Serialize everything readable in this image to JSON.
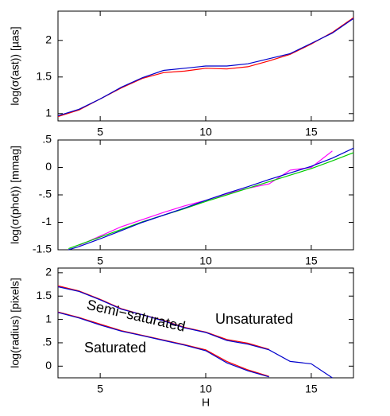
{
  "chart_data": [
    {
      "type": "line",
      "ylabel": "log(σ(ast)) [µas]",
      "xlim": [
        3,
        17
      ],
      "xticks": [
        5,
        10,
        15
      ],
      "ylim": [
        0.9,
        2.4
      ],
      "yticks": [
        1,
        1.5,
        2
      ],
      "series": [
        {
          "color": "#ff0000",
          "x": [
            3,
            4,
            5,
            6,
            7,
            8,
            9,
            10,
            11,
            12,
            13,
            14,
            15,
            16,
            17
          ],
          "values": [
            0.96,
            1.05,
            1.2,
            1.35,
            1.48,
            1.56,
            1.58,
            1.62,
            1.61,
            1.64,
            1.72,
            1.81,
            1.95,
            2.11,
            2.31
          ]
        },
        {
          "color": "#0000cc",
          "x": [
            3,
            4,
            5,
            6,
            7,
            8,
            9,
            10,
            11,
            12,
            13,
            14,
            15,
            16,
            17
          ],
          "values": [
            0.97,
            1.06,
            1.2,
            1.36,
            1.49,
            1.59,
            1.62,
            1.65,
            1.65,
            1.68,
            1.75,
            1.82,
            1.96,
            2.1,
            2.3
          ]
        }
      ]
    },
    {
      "type": "line",
      "ylabel": "log(σ(phot)) [mmag]",
      "xlim": [
        3,
        17
      ],
      "xticks": [
        5,
        10,
        15
      ],
      "ylim": [
        -1.5,
        0.5
      ],
      "yticks": [
        -1.5,
        -1,
        {
          "value": -0.5,
          "label": "-.5"
        },
        0,
        {
          "value": 0.5,
          "label": ".5"
        }
      ],
      "series": [
        {
          "color": "#ff00ff",
          "x": [
            4,
            5,
            6,
            7,
            8,
            9,
            10,
            11,
            12,
            13,
            14,
            15,
            16
          ],
          "values": [
            -1.42,
            -1.25,
            -1.08,
            -0.95,
            -0.82,
            -0.7,
            -0.6,
            -0.48,
            -0.38,
            -0.3,
            -0.05,
            0.0,
            0.3
          ]
        },
        {
          "color": "#00cc00",
          "x": [
            3.5,
            5,
            6,
            7,
            8,
            9,
            10,
            11,
            12,
            13,
            14,
            15,
            16,
            17
          ],
          "values": [
            -1.48,
            -1.27,
            -1.13,
            -0.99,
            -0.87,
            -0.75,
            -0.62,
            -0.5,
            -0.38,
            -0.26,
            -0.14,
            -0.02,
            0.12,
            0.27
          ]
        },
        {
          "color": "#0000cc",
          "x": [
            3.5,
            4,
            5,
            6,
            7,
            8,
            9,
            10,
            11,
            12,
            13,
            14,
            15,
            16,
            17
          ],
          "values": [
            -1.5,
            -1.44,
            -1.3,
            -1.15,
            -1.0,
            -0.87,
            -0.74,
            -0.6,
            -0.47,
            -0.35,
            -0.22,
            -0.1,
            0.02,
            0.17,
            0.35
          ]
        }
      ]
    },
    {
      "type": "line",
      "ylabel": "log(radius) [pixels]",
      "xlabel": "H",
      "xlim": [
        3,
        17
      ],
      "xticks": [
        5,
        10,
        15
      ],
      "ylim": [
        -0.25,
        2.1
      ],
      "yticks": [
        0,
        {
          "value": 0.5,
          "label": ".5"
        },
        1,
        1.5,
        2
      ],
      "annotations": [
        "Unsaturated",
        "Semi−saturated",
        "Saturated"
      ],
      "series": [
        {
          "color": "#ff0000",
          "x": [
            3,
            4,
            5,
            6,
            7,
            8,
            9,
            10,
            11,
            12,
            13
          ],
          "values": [
            1.72,
            1.61,
            1.43,
            1.23,
            1.1,
            0.98,
            0.83,
            0.73,
            0.57,
            0.49,
            0.36
          ]
        },
        {
          "color": "#0000cc",
          "x": [
            3,
            4,
            5,
            6,
            7,
            8,
            9,
            10,
            11,
            12,
            13,
            14,
            15,
            16
          ],
          "values": [
            1.7,
            1.6,
            1.42,
            1.22,
            1.1,
            0.97,
            0.82,
            0.72,
            0.55,
            0.47,
            0.35,
            0.1,
            0.05,
            -0.25
          ]
        },
        {
          "color": "#ff0000",
          "x": [
            3,
            4,
            5,
            6,
            7,
            8,
            9,
            10,
            11,
            12,
            13
          ],
          "values": [
            1.16,
            1.04,
            0.9,
            0.76,
            0.66,
            0.56,
            0.46,
            0.35,
            0.1,
            -0.08,
            -0.22
          ]
        },
        {
          "color": "#0000cc",
          "x": [
            3,
            4,
            5,
            6,
            7,
            8,
            9,
            10,
            11,
            12,
            13
          ],
          "values": [
            1.15,
            1.03,
            0.88,
            0.75,
            0.65,
            0.55,
            0.45,
            0.33,
            0.07,
            -0.1,
            -0.23
          ]
        }
      ]
    }
  ]
}
